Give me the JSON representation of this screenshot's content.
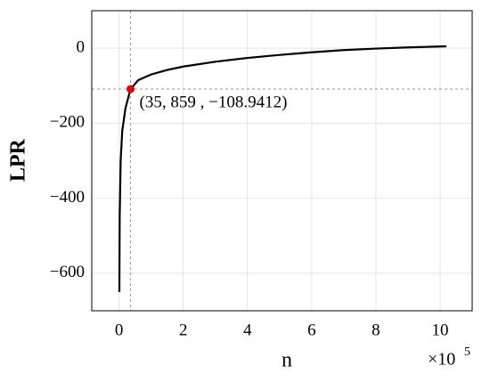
{
  "chart_data": {
    "type": "line",
    "x_label": "n",
    "y_label": "LPR",
    "x_multiplier": "×10",
    "x_exponent": "5",
    "x": [
      0.01,
      0.02,
      0.05,
      0.1,
      0.2,
      0.35859,
      0.6,
      1,
      1.5,
      2,
      3,
      4,
      5,
      6,
      7,
      8,
      9,
      10.2
    ],
    "values": [
      -650,
      -450,
      -300,
      -220,
      -160,
      -108.9412,
      -85,
      -70,
      -58,
      -49,
      -36,
      -26,
      -18,
      -11,
      -5,
      -1,
      2,
      5
    ],
    "color": "#000000",
    "xlim": [
      -0.85,
      11
    ],
    "ylim": [
      -700,
      100
    ],
    "xticks": [
      0,
      2,
      4,
      6,
      8,
      10
    ],
    "yticks": [
      {
        "value": -600,
        "label": "−600"
      },
      {
        "value": -400,
        "label": "−400"
      },
      {
        "value": -200,
        "label": "−200"
      },
      0
    ],
    "grid": true,
    "highlight": {
      "x": 0.35859,
      "y": -108.9412,
      "label": "(35, 859 , −108.9412)",
      "color": "#e00000"
    }
  }
}
